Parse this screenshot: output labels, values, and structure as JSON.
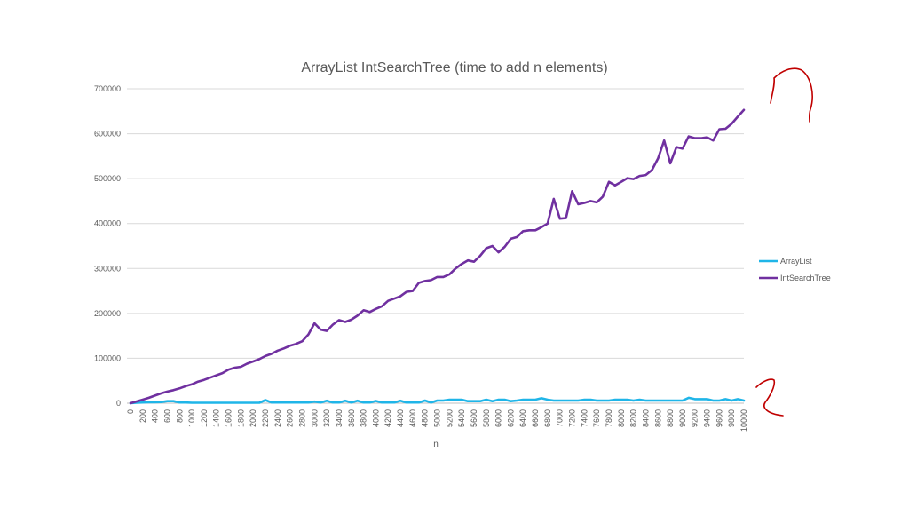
{
  "chart_data": {
    "type": "line",
    "title": "ArrayList IntSearchTree (time to add n elements)",
    "xlabel": "n",
    "ylabel": "",
    "ylim": [
      0,
      700000
    ],
    "y_ticks": [
      0,
      100000,
      200000,
      300000,
      400000,
      500000,
      600000,
      700000
    ],
    "y_tick_labels": [
      "0",
      "100000",
      "200000",
      "300000",
      "400000",
      "500000",
      "600000",
      "700000"
    ],
    "x_range": [
      0,
      10000
    ],
    "x_ticks": [
      0,
      200,
      400,
      600,
      800,
      1000,
      1200,
      1400,
      1600,
      1800,
      2000,
      2200,
      2400,
      2600,
      2800,
      3000,
      3200,
      3400,
      3600,
      3800,
      4000,
      4200,
      4400,
      4600,
      4800,
      5000,
      5200,
      5400,
      5600,
      5800,
      6000,
      6200,
      6400,
      6600,
      6800,
      7000,
      7200,
      7400,
      7600,
      7800,
      8000,
      8200,
      8400,
      8600,
      8800,
      9000,
      9200,
      9400,
      9600,
      9800,
      10000
    ],
    "x_tick_labels": [
      "0",
      "200",
      "400",
      "600",
      "800",
      "1000",
      "1200",
      "1400",
      "1600",
      "1800",
      "2000",
      "2200",
      "2400",
      "2600",
      "2800",
      "3000",
      "3200",
      "3400",
      "3600",
      "3800",
      "4000",
      "4200",
      "4400",
      "4600",
      "4800",
      "5000",
      "5200",
      "5400",
      "5600",
      "5800",
      "6000",
      "6200",
      "6400",
      "6600",
      "6800",
      "7000",
      "7200",
      "7400",
      "7600",
      "7800",
      "8000",
      "8200",
      "8400",
      "8600",
      "8800",
      "9000",
      "9200",
      "9400",
      "9600",
      "9800",
      "10000"
    ],
    "grid": true,
    "legend_position": "right",
    "x": [
      0,
      100,
      200,
      300,
      400,
      500,
      600,
      700,
      800,
      900,
      1000,
      1100,
      1200,
      1300,
      1400,
      1500,
      1600,
      1700,
      1800,
      1900,
      2000,
      2100,
      2200,
      2300,
      2400,
      2500,
      2600,
      2700,
      2800,
      2900,
      3000,
      3100,
      3200,
      3300,
      3400,
      3500,
      3600,
      3700,
      3800,
      3900,
      4000,
      4100,
      4200,
      4300,
      4400,
      4500,
      4600,
      4700,
      4800,
      4900,
      5000,
      5100,
      5200,
      5300,
      5400,
      5500,
      5600,
      5700,
      5800,
      5900,
      6000,
      6100,
      6200,
      6300,
      6400,
      6500,
      6600,
      6700,
      6800,
      6900,
      7000,
      7100,
      7200,
      7300,
      7400,
      7500,
      7600,
      7700,
      7800,
      7900,
      8000,
      8100,
      8200,
      8300,
      8400,
      8500,
      8600,
      8700,
      8800,
      8900,
      9000,
      9100,
      9200,
      9300,
      9400,
      9500,
      9600,
      9700,
      9800,
      9900,
      10000
    ],
    "series": [
      {
        "name": "ArrayList",
        "color": "#1fb5e8",
        "values": [
          0,
          1000,
          1500,
          2000,
          2000,
          2500,
          4500,
          4500,
          1500,
          1500,
          1000,
          1000,
          1000,
          1000,
          1000,
          1000,
          1000,
          1000,
          1000,
          1000,
          1000,
          1000,
          7000,
          1500,
          1500,
          1500,
          1500,
          1500,
          1500,
          1500,
          3500,
          1500,
          5500,
          1500,
          1500,
          5500,
          1500,
          5500,
          1500,
          1500,
          5000,
          1500,
          1500,
          1500,
          5500,
          1500,
          1500,
          1500,
          6000,
          1500,
          6000,
          6000,
          8000,
          8000,
          8000,
          4500,
          4500,
          4500,
          8000,
          4500,
          8000,
          8000,
          4500,
          6000,
          8000,
          8000,
          8000,
          11000,
          8000,
          6000,
          6000,
          6000,
          6000,
          6000,
          8000,
          8000,
          6000,
          6000,
          6000,
          8000,
          8000,
          8000,
          6000,
          8000,
          6000,
          6000,
          6000,
          6000,
          6000,
          6000,
          6000,
          12000,
          9000,
          9000,
          9000,
          6000,
          6000,
          9000,
          6000,
          9000,
          6000
        ]
      },
      {
        "name": "IntSearchTree",
        "color": "#7030a0",
        "values": [
          0,
          4000,
          8000,
          12000,
          17000,
          22000,
          26000,
          29000,
          33000,
          38000,
          42000,
          48000,
          52000,
          57000,
          62000,
          67000,
          75000,
          79000,
          81000,
          88000,
          93000,
          98000,
          105000,
          110000,
          117000,
          122000,
          128000,
          132000,
          138000,
          153000,
          178000,
          164000,
          161000,
          175000,
          185000,
          181000,
          186000,
          195000,
          207000,
          203000,
          210000,
          216000,
          228000,
          233000,
          238000,
          248000,
          250000,
          268000,
          272000,
          274000,
          281000,
          281000,
          287000,
          300000,
          310000,
          318000,
          315000,
          328000,
          345000,
          350000,
          336000,
          348000,
          366000,
          370000,
          383000,
          385000,
          385000,
          392000,
          400000,
          455000,
          411000,
          412000,
          472000,
          443000,
          446000,
          450000,
          447000,
          460000,
          493000,
          485000,
          493000,
          501000,
          499000,
          506000,
          508000,
          519000,
          545000,
          585000,
          534000,
          570000,
          567000,
          594000,
          590000,
          590000,
          592000,
          585000,
          610000,
          611000,
          622000,
          638000,
          653000
        ]
      }
    ]
  }
}
